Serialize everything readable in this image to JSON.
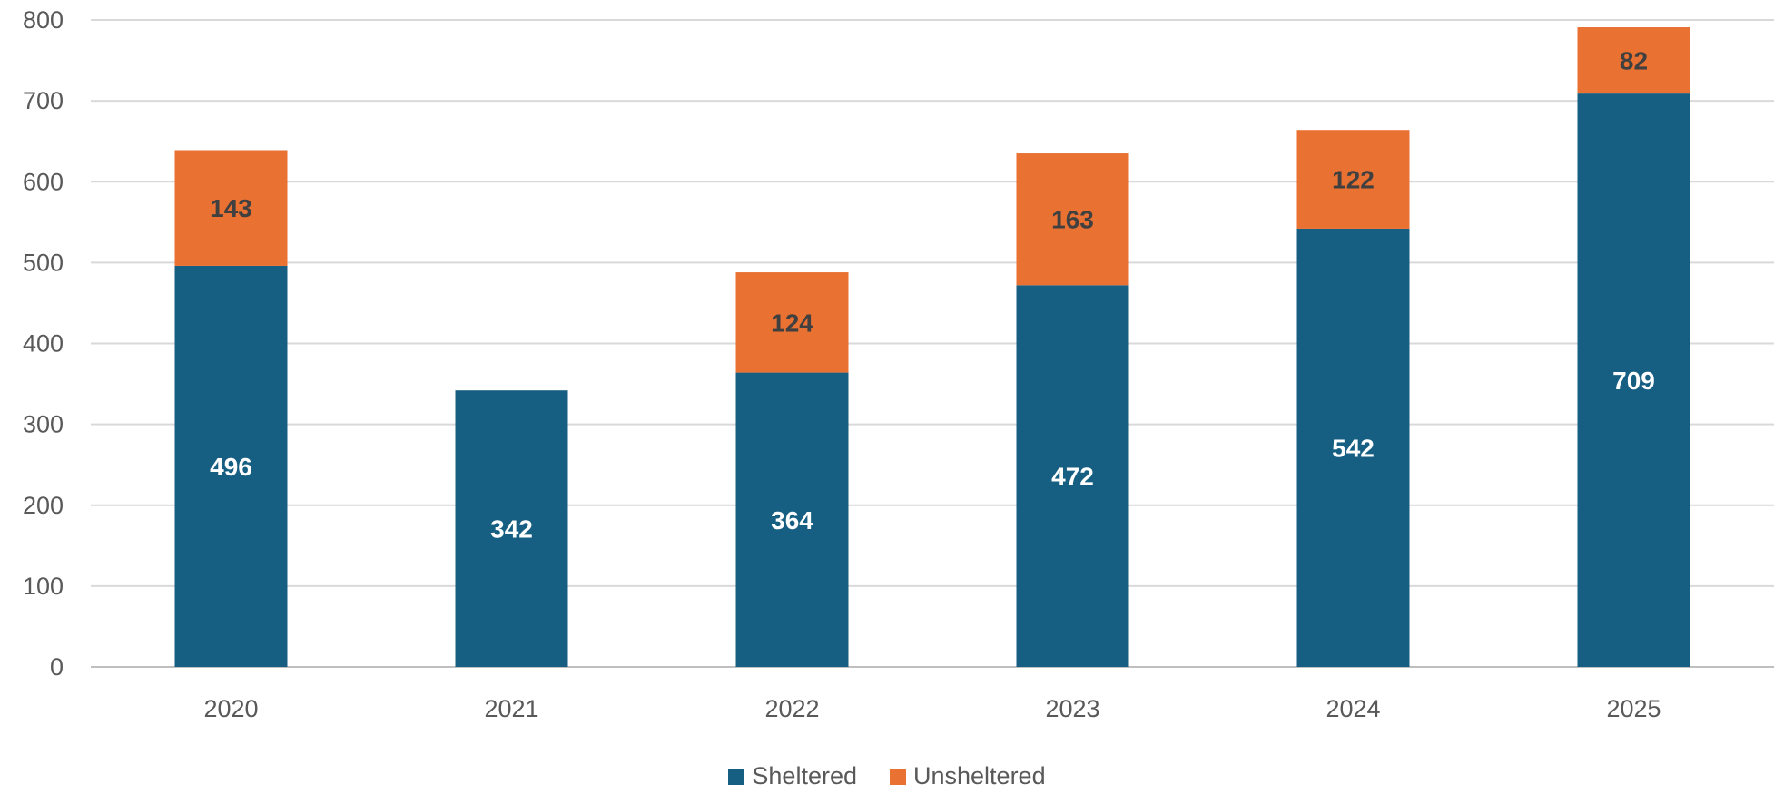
{
  "chart_data": {
    "type": "bar",
    "stacked": true,
    "categories": [
      "2020",
      "2021",
      "2022",
      "2023",
      "2024",
      "2025"
    ],
    "series": [
      {
        "name": "Sheltered",
        "values": [
          496,
          342,
          364,
          472,
          542,
          709
        ],
        "color": "#175F82",
        "label_color": "#FFFFFF"
      },
      {
        "name": "Unsheltered",
        "values": [
          143,
          null,
          124,
          163,
          122,
          82
        ],
        "color": "#E97132",
        "label_color": "#404040"
      }
    ],
    "title": "",
    "xlabel": "",
    "ylabel": "",
    "ylim": [
      0,
      800
    ],
    "yticks": [
      "0",
      "100",
      "200",
      "300",
      "400",
      "500",
      "600",
      "700",
      "800"
    ],
    "grid": true,
    "legend_position": "bottom"
  }
}
